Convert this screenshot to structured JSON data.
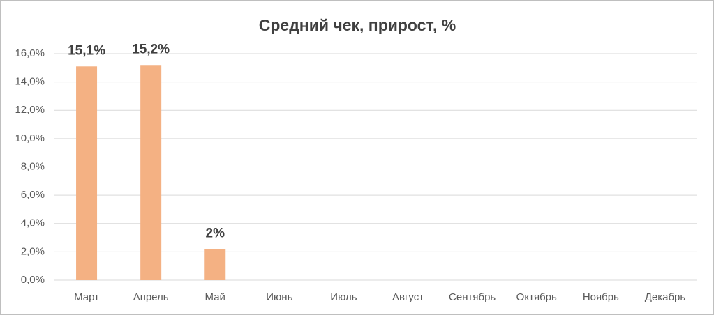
{
  "chart_data": {
    "type": "bar",
    "title": "Средний чек, прирост, %",
    "categories": [
      "Март",
      "Апрель",
      "Май",
      "Июнь",
      "Июль",
      "Август",
      "Сентябрь",
      "Октябрь",
      "Ноябрь",
      "Декабрь"
    ],
    "values": [
      15.1,
      15.2,
      2.2,
      null,
      null,
      null,
      null,
      null,
      null,
      null
    ],
    "value_labels": [
      "15,1%",
      "15,2%",
      "2%",
      null,
      null,
      null,
      null,
      null,
      null,
      null
    ],
    "color": "#f4b183",
    "ylim": [
      0,
      16
    ],
    "yticks": [
      {
        "value": 0,
        "label": "0,0%"
      },
      {
        "value": 2,
        "label": "2,0%"
      },
      {
        "value": 4,
        "label": "4,0%"
      },
      {
        "value": 6,
        "label": "6,0%"
      },
      {
        "value": 8,
        "label": "8,0%"
      },
      {
        "value": 10,
        "label": "10,0%"
      },
      {
        "value": 12,
        "label": "12,0%"
      },
      {
        "value": 14,
        "label": "14,0%"
      },
      {
        "value": 16,
        "label": "16,0%"
      }
    ],
    "grid": true
  }
}
